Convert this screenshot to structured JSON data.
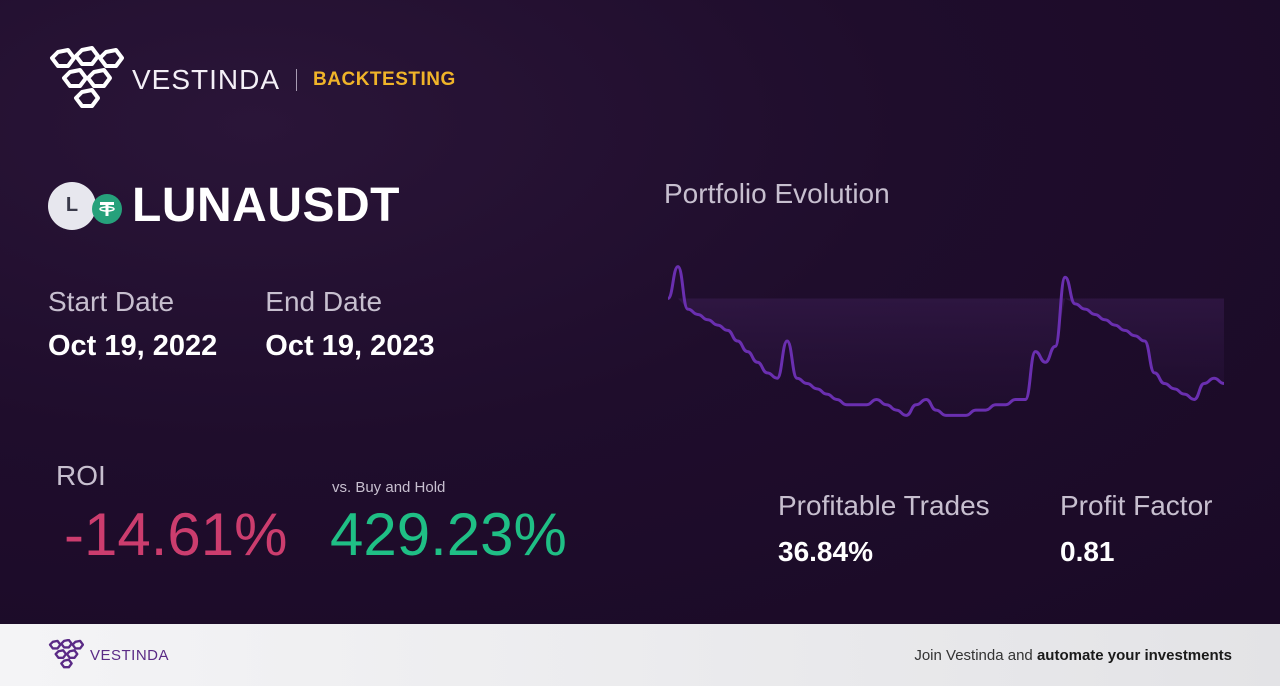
{
  "header": {
    "brand": "VESTINDA",
    "tag": "BACKTESTING"
  },
  "pair": {
    "coin_letter": "L",
    "name": "LUNAUSDT"
  },
  "dates": {
    "start_label": "Start Date",
    "start_value": "Oct 19, 2022",
    "end_label": "End Date",
    "end_value": "Oct 19, 2023"
  },
  "roi": {
    "label": "ROI",
    "value": "-14.61%",
    "bh_label": "vs. Buy and Hold",
    "bh_value": "429.23%"
  },
  "chart": {
    "title": "Portfolio Evolution"
  },
  "stats": {
    "profitable_label": "Profitable Trades",
    "profitable_value": "36.84%",
    "factor_label": "Profit Factor",
    "factor_value": "0.81"
  },
  "footer": {
    "brand": "VESTINDA",
    "cta_prefix": "Join Vestinda and",
    "cta_bold": "automate your investments"
  },
  "colors": {
    "accent": "#f0b429",
    "negative": "#cc3d6e",
    "positive": "#1fbf85",
    "line": "#6a2fb0",
    "tether": "#26a17b"
  },
  "chart_data": {
    "type": "line",
    "title": "Portfolio Evolution",
    "x": [
      0,
      1,
      2,
      3,
      4,
      5,
      6,
      7,
      8,
      9,
      10,
      11,
      12,
      13,
      14,
      15,
      16,
      17,
      18,
      19,
      20,
      21,
      22,
      23,
      24,
      25,
      26,
      27,
      28,
      29,
      30,
      31,
      32,
      33,
      34,
      35,
      36,
      37,
      38,
      39,
      40,
      41,
      42,
      43,
      44,
      45,
      46,
      47,
      48,
      49,
      50,
      51,
      52,
      53,
      54,
      55,
      56
    ],
    "series": [
      {
        "values": [
          100,
          106,
          98,
          97,
          96,
          95,
          94,
          92,
          90,
          88,
          86,
          85,
          92,
          85,
          84,
          83,
          82,
          81,
          80,
          80,
          80,
          81,
          80,
          79,
          78,
          80,
          81,
          79,
          78,
          78,
          78,
          79,
          79,
          80,
          80,
          81,
          81,
          90,
          88,
          91,
          104,
          99,
          98,
          97,
          96,
          95,
          94,
          93,
          92,
          86,
          84,
          83,
          82,
          81,
          84,
          85,
          84
        ]
      }
    ],
    "baseline": 100,
    "grid": false
  }
}
